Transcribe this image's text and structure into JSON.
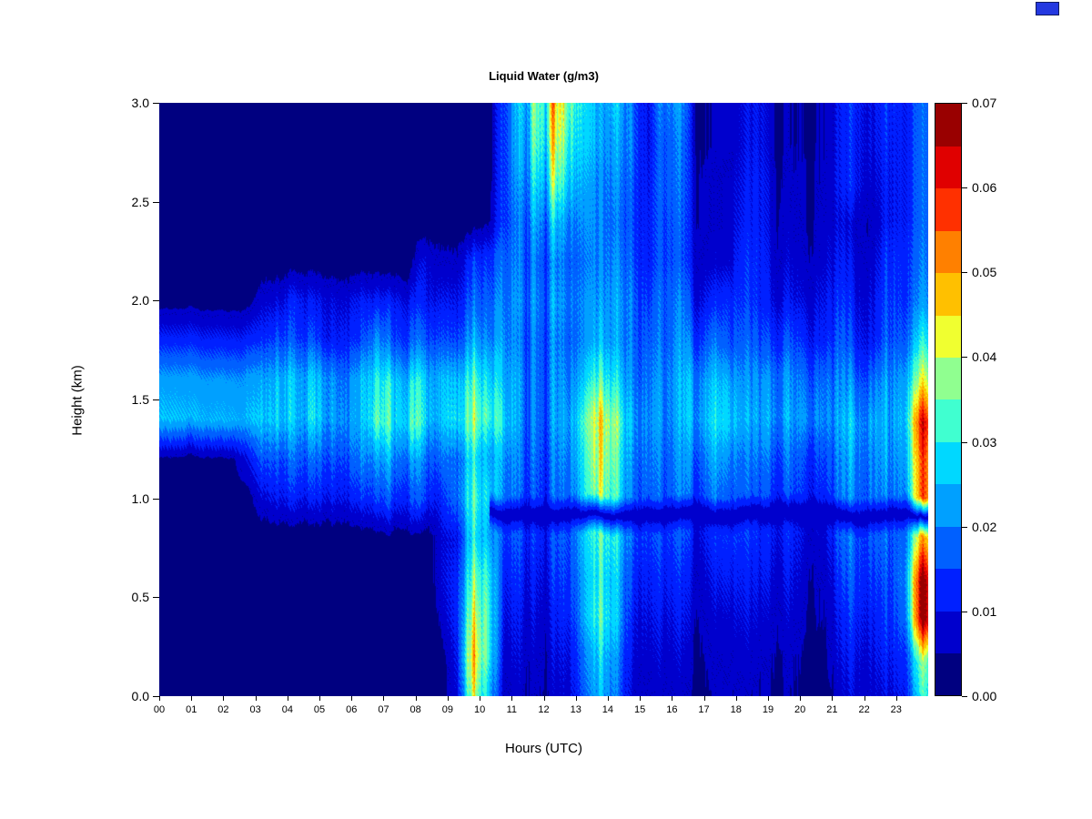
{
  "page": {
    "background": "#ffffff"
  },
  "corner_artifact": {
    "color": "#2438e0"
  },
  "chart_data": {
    "type": "heatmap",
    "title": "Liquid Water (g/m3)",
    "x_axis": {
      "label": "Hours (UTC)",
      "range": [
        0,
        24
      ],
      "tick_values": [
        0,
        1,
        2,
        3,
        4,
        5,
        6,
        7,
        8,
        9,
        10,
        11,
        12,
        13,
        14,
        15,
        16,
        17,
        18,
        19,
        20,
        21,
        22,
        23
      ],
      "tick_labels": [
        "00",
        "01",
        "02",
        "03",
        "04",
        "05",
        "06",
        "07",
        "08",
        "09",
        "10",
        "11",
        "12",
        "13",
        "14",
        "15",
        "16",
        "17",
        "18",
        "19",
        "20",
        "21",
        "22",
        "23"
      ]
    },
    "y_axis": {
      "label": "Height (km)",
      "range": [
        0,
        3
      ],
      "tick_values": [
        0,
        0.5,
        1.0,
        1.5,
        2.0,
        2.5,
        3.0
      ],
      "tick_labels": [
        "0.0",
        "0.5",
        "1.0",
        "1.5",
        "2.0",
        "2.5",
        "3.0"
      ]
    },
    "colorbar": {
      "range": [
        0,
        0.07
      ],
      "level_step": 0.005,
      "tick_values": [
        0,
        0.01,
        0.02,
        0.03,
        0.04,
        0.05,
        0.06,
        0.07
      ],
      "tick_labels": [
        "0.00",
        "0.01",
        "0.02",
        "0.03",
        "0.04",
        "0.05",
        "0.06",
        "0.07"
      ],
      "colors": [
        "#000080",
        "#0000cd",
        "#0020ff",
        "#0060ff",
        "#00a0ff",
        "#00d8ff",
        "#40ffd0",
        "#90ff90",
        "#f0ff30",
        "#ffc000",
        "#ff8000",
        "#ff3000",
        "#e00000",
        "#990000"
      ]
    },
    "grid": {
      "unit": "0.001 g/m3",
      "col_hours_start": 0.25,
      "col_hours_step": 0.5,
      "row_heights_start": 3.0,
      "row_heights_step": -0.2,
      "values": [
        [
          2,
          2,
          2,
          2,
          2,
          2,
          2,
          2,
          2,
          2,
          2,
          2,
          2,
          2,
          2,
          2,
          2,
          2,
          2,
          2,
          2,
          15,
          30,
          40,
          55,
          45,
          30,
          20,
          25,
          20,
          10,
          25,
          20,
          4,
          4,
          4,
          10,
          10,
          4,
          5,
          4,
          5,
          12,
          15,
          10,
          18,
          12,
          15
        ],
        [
          2,
          2,
          2,
          2,
          2,
          2,
          2,
          2,
          2,
          2,
          2,
          2,
          2,
          2,
          2,
          2,
          2,
          2,
          2,
          2,
          2,
          15,
          28,
          38,
          50,
          40,
          28,
          20,
          22,
          20,
          10,
          22,
          18,
          4,
          4,
          4,
          10,
          10,
          4,
          5,
          4,
          5,
          12,
          14,
          10,
          16,
          12,
          15
        ],
        [
          2,
          2,
          2,
          2,
          2,
          2,
          2,
          2,
          2,
          2,
          2,
          2,
          2,
          2,
          2,
          2,
          2,
          2,
          2,
          2,
          2,
          15,
          25,
          32,
          42,
          34,
          25,
          18,
          20,
          18,
          11,
          22,
          17,
          5,
          5,
          5,
          11,
          11,
          5,
          6,
          4,
          6,
          12,
          14,
          8,
          15,
          12,
          15
        ],
        [
          2,
          2,
          2,
          2,
          2,
          2,
          2,
          2,
          2,
          2,
          2,
          2,
          2,
          2,
          2,
          2,
          2,
          2,
          2,
          2,
          3,
          15,
          22,
          26,
          30,
          26,
          22,
          18,
          18,
          17,
          12,
          20,
          16,
          5,
          5,
          5,
          12,
          11,
          5,
          7,
          4,
          7,
          10,
          8,
          6,
          15,
          12,
          15
        ],
        [
          2,
          2,
          2,
          2,
          2,
          2,
          2,
          2,
          2,
          2,
          2,
          2,
          2,
          2,
          2,
          2,
          10,
          6,
          6,
          12,
          12,
          18,
          22,
          22,
          24,
          22,
          20,
          18,
          20,
          18,
          12,
          20,
          15,
          6,
          6,
          6,
          14,
          12,
          6,
          8,
          5,
          8,
          12,
          10,
          8,
          18,
          14,
          16
        ],
        [
          3,
          3,
          3,
          3,
          3,
          3,
          8,
          10,
          12,
          10,
          10,
          10,
          10,
          10,
          10,
          10,
          12,
          10,
          10,
          15,
          15,
          20,
          24,
          24,
          26,
          24,
          22,
          20,
          22,
          20,
          15,
          22,
          18,
          8,
          10,
          10,
          15,
          12,
          8,
          10,
          7,
          10,
          15,
          12,
          10,
          20,
          15,
          18
        ],
        [
          12,
          12,
          12,
          12,
          12,
          12,
          14,
          18,
          15,
          15,
          12,
          14,
          13,
          18,
          14,
          15,
          18,
          15,
          15,
          20,
          18,
          22,
          22,
          22,
          24,
          22,
          22,
          22,
          22,
          20,
          18,
          22,
          20,
          12,
          15,
          12,
          18,
          15,
          12,
          15,
          10,
          12,
          18,
          15,
          12,
          22,
          18,
          25
        ],
        [
          22,
          22,
          22,
          22,
          22,
          22,
          24,
          28,
          24,
          25,
          24,
          22,
          22,
          25,
          24,
          25,
          28,
          24,
          25,
          28,
          25,
          25,
          25,
          22,
          25,
          25,
          28,
          30,
          28,
          22,
          20,
          25,
          22,
          18,
          20,
          18,
          22,
          20,
          18,
          20,
          15,
          18,
          22,
          22,
          20,
          28,
          25,
          35
        ],
        [
          25,
          25,
          25,
          25,
          25,
          25,
          28,
          30,
          25,
          28,
          25,
          25,
          22,
          28,
          25,
          28,
          30,
          25,
          28,
          32,
          30,
          28,
          25,
          22,
          25,
          28,
          35,
          40,
          35,
          25,
          22,
          25,
          22,
          20,
          22,
          20,
          25,
          22,
          20,
          22,
          18,
          20,
          25,
          28,
          25,
          30,
          28,
          50
        ],
        [
          4,
          4,
          4,
          4,
          4,
          10,
          18,
          18,
          18,
          18,
          18,
          18,
          18,
          18,
          18,
          18,
          20,
          18,
          18,
          25,
          22,
          22,
          22,
          20,
          22,
          25,
          32,
          38,
          32,
          22,
          20,
          22,
          20,
          15,
          18,
          15,
          20,
          18,
          15,
          18,
          12,
          15,
          22,
          25,
          22,
          28,
          25,
          45
        ],
        [
          3,
          3,
          3,
          3,
          3,
          3,
          10,
          12,
          12,
          12,
          12,
          12,
          12,
          12,
          12,
          12,
          15,
          12,
          18,
          28,
          25,
          20,
          20,
          18,
          20,
          22,
          30,
          35,
          30,
          20,
          18,
          20,
          18,
          12,
          15,
          12,
          18,
          15,
          12,
          15,
          10,
          12,
          20,
          22,
          20,
          25,
          22,
          45
        ],
        [
          2,
          2,
          2,
          2,
          2,
          2,
          2,
          2,
          2,
          2,
          2,
          2,
          2,
          2,
          2,
          2,
          2,
          8,
          10,
          25,
          22,
          15,
          18,
          15,
          18,
          20,
          28,
          30,
          28,
          18,
          15,
          18,
          15,
          8,
          10,
          10,
          15,
          12,
          10,
          12,
          6,
          8,
          18,
          20,
          18,
          22,
          20,
          40
        ],
        [
          2,
          2,
          2,
          2,
          2,
          2,
          2,
          2,
          2,
          2,
          2,
          2,
          2,
          2,
          2,
          2,
          2,
          8,
          12,
          30,
          28,
          12,
          15,
          12,
          15,
          18,
          25,
          28,
          25,
          15,
          12,
          15,
          12,
          6,
          8,
          8,
          12,
          10,
          8,
          10,
          5,
          6,
          15,
          18,
          15,
          20,
          22,
          55
        ],
        [
          2,
          2,
          2,
          2,
          2,
          2,
          2,
          2,
          2,
          2,
          2,
          2,
          2,
          2,
          2,
          2,
          2,
          6,
          12,
          35,
          30,
          10,
          12,
          10,
          12,
          15,
          25,
          30,
          25,
          12,
          10,
          12,
          10,
          5,
          6,
          6,
          10,
          8,
          6,
          8,
          4,
          5,
          12,
          15,
          12,
          18,
          20,
          55
        ],
        [
          2,
          2,
          2,
          2,
          2,
          2,
          2,
          2,
          2,
          2,
          2,
          2,
          2,
          2,
          2,
          2,
          2,
          2,
          10,
          40,
          30,
          8,
          10,
          8,
          10,
          12,
          20,
          25,
          20,
          10,
          8,
          10,
          8,
          4,
          5,
          5,
          8,
          6,
          5,
          6,
          3,
          4,
          10,
          12,
          10,
          15,
          15,
          30
        ],
        [
          2,
          2,
          2,
          2,
          2,
          2,
          2,
          2,
          2,
          2,
          2,
          2,
          2,
          2,
          2,
          2,
          2,
          2,
          8,
          35,
          25,
          6,
          8,
          6,
          8,
          10,
          18,
          22,
          18,
          8,
          6,
          8,
          6,
          3,
          4,
          4,
          6,
          5,
          4,
          5,
          3,
          3,
          8,
          10,
          8,
          12,
          12,
          25
        ]
      ]
    },
    "features": {
      "dark_band": {
        "height_km": 0.92,
        "half_width_km": 0.06,
        "hours": [
          10.3,
          24
        ],
        "max_value": 0.006
      }
    }
  }
}
